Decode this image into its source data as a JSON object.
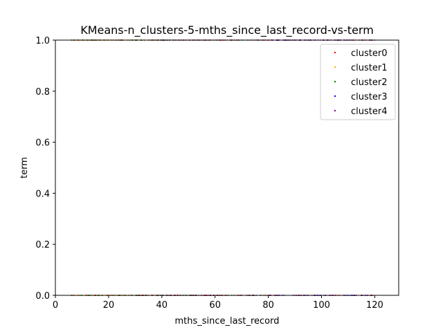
{
  "chart_data": {
    "type": "scatter",
    "title": "KMeans-n_clusters-5-mths_since_last_record-vs-term",
    "xlabel": "mths_since_last_record",
    "ylabel": "term",
    "xlim": [
      0,
      129
    ],
    "ylim": [
      0,
      1
    ],
    "x_ticks": [
      0,
      20,
      40,
      60,
      80,
      100,
      120
    ],
    "y_ticks": [
      0.0,
      0.2,
      0.4,
      0.6,
      0.8,
      1.0
    ],
    "x_tick_labels": [
      "0",
      "20",
      "40",
      "60",
      "80",
      "100",
      "120"
    ],
    "y_tick_labels": [
      "0.0",
      "0.2",
      "0.4",
      "0.6",
      "0.8",
      "1.0"
    ],
    "grid": false,
    "legend_position": "top-right",
    "series": [
      {
        "name": "cluster0",
        "color": "#ff0000",
        "x_range": [
          6,
          120
        ],
        "y_values": [
          0,
          1
        ]
      },
      {
        "name": "cluster1",
        "color": "#ffa500",
        "x_range": [
          6,
          40
        ],
        "y_values": [
          0,
          1
        ]
      },
      {
        "name": "cluster2",
        "color": "#008000",
        "x_range": [
          6,
          80
        ],
        "y_values": [
          0,
          1
        ]
      },
      {
        "name": "cluster3",
        "color": "#0000ff",
        "x_range": [
          83,
          120
        ],
        "y_values": [
          0,
          1
        ]
      },
      {
        "name": "cluster4",
        "color": "#800080",
        "x_range": [
          30,
          120
        ],
        "y_values": [
          0,
          1
        ]
      }
    ]
  }
}
